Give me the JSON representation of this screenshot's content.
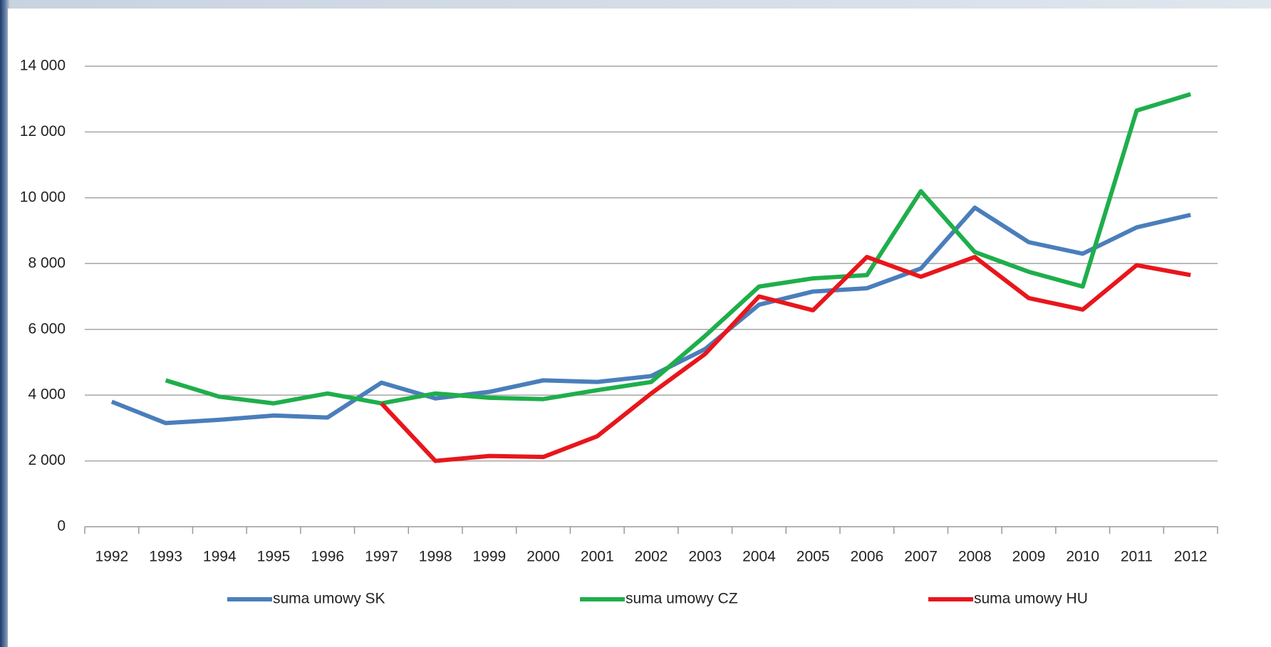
{
  "chart_data": {
    "type": "line",
    "categories": [
      "1992",
      "1993",
      "1994",
      "1995",
      "1996",
      "1997",
      "1998",
      "1999",
      "2000",
      "2001",
      "2002",
      "2003",
      "2004",
      "2005",
      "2006",
      "2007",
      "2008",
      "2009",
      "2010",
      "2011",
      "2012"
    ],
    "series": [
      {
        "name": "suma umowy SK",
        "color": "#4a7ebb",
        "values": [
          3800,
          3150,
          3250,
          3380,
          3320,
          4380,
          3900,
          4100,
          4450,
          4400,
          4580,
          5400,
          6750,
          7150,
          7250,
          7850,
          9700,
          8650,
          8300,
          9100,
          9480
        ]
      },
      {
        "name": "suma umowy CZ",
        "color": "#1fae4b",
        "values": [
          null,
          4450,
          3950,
          3750,
          4050,
          3750,
          4050,
          3920,
          3880,
          4150,
          4400,
          5800,
          7300,
          7550,
          7650,
          10200,
          8350,
          7750,
          7300,
          12650,
          13150
        ]
      },
      {
        "name": "suma umowy HU",
        "color": "#e8161c",
        "values": [
          null,
          null,
          null,
          null,
          null,
          3750,
          2000,
          2150,
          2120,
          2750,
          4050,
          5250,
          7000,
          6580,
          8200,
          7600,
          8200,
          6950,
          6600,
          7950,
          7650
        ]
      }
    ],
    "ylim": [
      0,
      14000
    ],
    "yticks": [
      0,
      {
        "value": 2000,
        "label": "2 000"
      },
      {
        "value": 4000,
        "label": "4 000"
      },
      {
        "value": 6000,
        "label": "6 000"
      },
      {
        "value": 8000,
        "label": "8 000"
      },
      {
        "value": 10000,
        "label": "10 000"
      },
      {
        "value": 12000,
        "label": "12 000"
      },
      {
        "value": 14000,
        "label": "14 000"
      }
    ],
    "grid": true,
    "legend": "bottom"
  }
}
